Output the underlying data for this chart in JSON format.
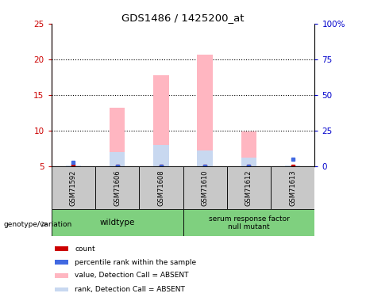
{
  "title": "GDS1486 / 1425200_at",
  "samples": [
    "GSM71592",
    "GSM71606",
    "GSM71608",
    "GSM71610",
    "GSM71612",
    "GSM71613"
  ],
  "pink_bar_tops": [
    5.1,
    13.2,
    17.8,
    20.7,
    9.9,
    5.1
  ],
  "blue_bar_tops": [
    5.5,
    7.0,
    8.0,
    7.2,
    6.2,
    6.0
  ],
  "has_pink_bar": [
    false,
    true,
    true,
    true,
    true,
    false
  ],
  "has_blue_bar": [
    false,
    true,
    true,
    true,
    true,
    false
  ],
  "red_square_y": [
    5.1,
    5.05,
    5.05,
    5.05,
    5.05,
    5.05
  ],
  "blue_square_y": [
    5.55,
    5.05,
    5.05,
    5.05,
    5.05,
    6.05
  ],
  "show_pink_stub": [
    true,
    false,
    false,
    false,
    false,
    true
  ],
  "show_blue_stub": [
    true,
    false,
    false,
    false,
    false,
    true
  ],
  "ylim_left": [
    5,
    25
  ],
  "ylim_right": [
    0,
    100
  ],
  "yticks_left": [
    5,
    10,
    15,
    20,
    25
  ],
  "yticks_right": [
    0,
    25,
    50,
    75,
    100
  ],
  "ytick_labels_right": [
    "0",
    "25",
    "50",
    "75",
    "100%"
  ],
  "bar_width": 0.35,
  "pink_color": "#FFB6C1",
  "lavender_color": "#C8D8F0",
  "blue_color": "#4169E1",
  "red_color": "#CC0000",
  "background_color": "#ffffff",
  "sample_box_color": "#C8C8C8",
  "left_axis_color": "#CC0000",
  "right_axis_color": "#0000CC",
  "green_color": "#7FD07F",
  "legend_labels": [
    "count",
    "percentile rank within the sample",
    "value, Detection Call = ABSENT",
    "rank, Detection Call = ABSENT"
  ],
  "legend_colors": [
    "#CC0000",
    "#4169E1",
    "#FFB6C1",
    "#C8D8F0"
  ]
}
